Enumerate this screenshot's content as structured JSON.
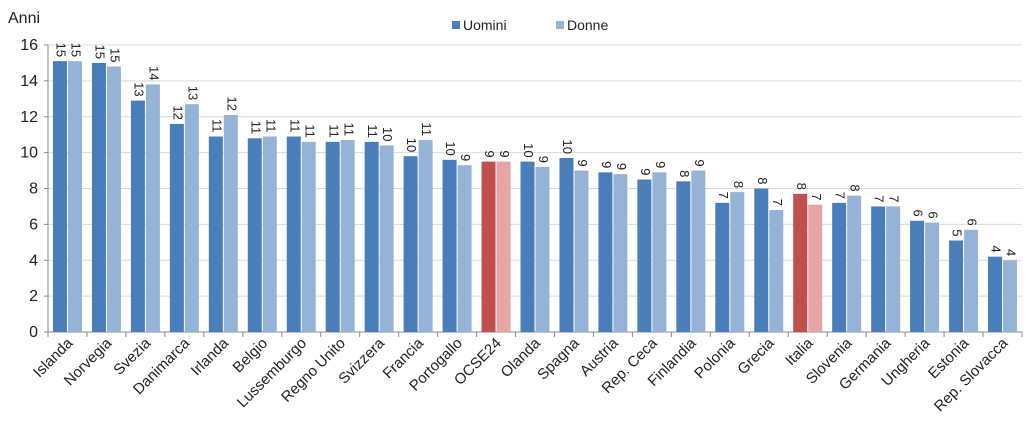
{
  "chart_data": {
    "type": "bar",
    "ylabel": "Anni",
    "ylim": [
      0,
      16
    ],
    "yticks": [
      0,
      2,
      4,
      6,
      8,
      10,
      12,
      14,
      16
    ],
    "grid": true,
    "legend_position": "top-center",
    "categories": [
      "Islanda",
      "Norvegia",
      "Svezia",
      "Danimarca",
      "Irlanda",
      "Belgio",
      "Lussemburgo",
      "Regno Unito",
      "Svizzera",
      "Francia",
      "Portogallo",
      "OCSE24",
      "Olanda",
      "Spagna",
      "Austria",
      "Rep. Ceca",
      "Finlandia",
      "Polonia",
      "Grecia",
      "Italia",
      "Slovenia",
      "Germania",
      "Ungheria",
      "Estonia",
      "Rep. Slovacca"
    ],
    "highlight_categories": [
      "OCSE24",
      "Italia"
    ],
    "series": [
      {
        "name": "Uomini",
        "color": "#4a7ebb",
        "highlight_color": "#c0504d",
        "values": [
          15.1,
          15.0,
          12.9,
          11.6,
          10.9,
          10.8,
          10.9,
          10.6,
          10.6,
          9.8,
          9.6,
          9.5,
          9.5,
          9.7,
          8.9,
          8.5,
          8.4,
          7.2,
          8.0,
          7.7,
          7.2,
          7.0,
          6.2,
          5.1,
          4.2
        ],
        "labels": [
          "15",
          "15",
          "13",
          "12",
          "11",
          "11",
          "11",
          "11",
          "11",
          "10",
          "10",
          "9",
          "10",
          "10",
          "9",
          "9",
          "8",
          "7",
          "8",
          "8",
          "7",
          "7",
          "6",
          "5",
          "4"
        ]
      },
      {
        "name": "Donne",
        "color": "#95b3d7",
        "highlight_color": "#e6a5a3",
        "values": [
          15.1,
          14.8,
          13.8,
          12.7,
          12.1,
          10.9,
          10.6,
          10.7,
          10.4,
          10.7,
          9.3,
          9.5,
          9.2,
          9.0,
          8.8,
          8.9,
          9.0,
          7.8,
          6.8,
          7.1,
          7.6,
          7.0,
          6.1,
          5.7,
          4.0
        ],
        "labels": [
          "15",
          "15",
          "14",
          "13",
          "12",
          "11",
          "11",
          "11",
          "10",
          "11",
          "9",
          "9",
          "9",
          "9",
          "9",
          "9",
          "9",
          "8",
          "7",
          "7",
          "8",
          "7",
          "6",
          "6",
          "4"
        ]
      }
    ]
  }
}
